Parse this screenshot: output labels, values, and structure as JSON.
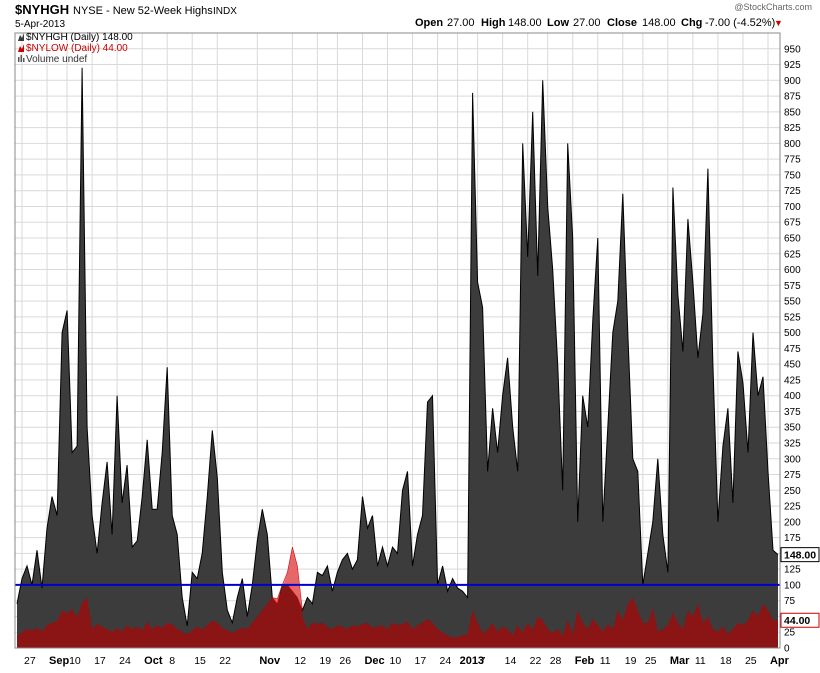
{
  "header": {
    "symbol": "$NYHGH",
    "description": "NYSE - New 52-Week Highs",
    "exchange": "INDX",
    "date": "5-Apr-2013",
    "watermark": "@StockCharts.com",
    "open_label": "Open",
    "open_value": "27.00",
    "high_label": "High",
    "high_value": "148.00",
    "low_label": "Low",
    "low_value": "27.00",
    "close_label": "Close",
    "close_value": "148.00",
    "chg_label": "Chg",
    "chg_value": "-7.00 (-4.52%)",
    "chg_arrow": "▼"
  },
  "legend": [
    {
      "text": "$NYHGH (Daily) 148.00",
      "color": "#3a3a3a",
      "icon": "area-series-icon"
    },
    {
      "text": "$NYLOW (Daily) 44.00",
      "color": "#cc0000",
      "icon": "area-series-icon"
    },
    {
      "text": "Volume undef",
      "color": "#555555",
      "icon": "volume-bars-icon"
    }
  ],
  "colors": {
    "highs_fill": "#3c3c3c",
    "highs_line": "#000000",
    "lows_fill": "#8b1414",
    "lows_spike_fill": "#f07070",
    "reference_line": "#0000cc",
    "grid": "#d9d9d9",
    "last_value_box_dark": "#000000",
    "last_value_box_red": "#cc0000"
  },
  "chart_data": {
    "type": "area",
    "title": "$NYHGH NYSE - New 52-Week Highs INDX",
    "ylim": [
      0,
      975
    ],
    "yticks": [
      0,
      25,
      50,
      75,
      100,
      125,
      150,
      175,
      200,
      225,
      250,
      275,
      300,
      325,
      350,
      375,
      400,
      425,
      450,
      475,
      500,
      525,
      550,
      575,
      600,
      625,
      650,
      675,
      700,
      725,
      750,
      775,
      800,
      825,
      850,
      875,
      900,
      925,
      950
    ],
    "ytick_labels": [
      "0",
      "25",
      "50",
      "75",
      "100",
      "125",
      "150",
      "175",
      "200",
      "225",
      "250",
      "275",
      "300",
      "325",
      "350",
      "375",
      "400",
      "425",
      "450",
      "475",
      "500",
      "525",
      "550",
      "575",
      "600",
      "625",
      "650",
      "675",
      "700",
      "725",
      "750",
      "775",
      "800",
      "825",
      "850",
      "875",
      "900",
      "925",
      "950"
    ],
    "xticks": [
      {
        "label": "27",
        "index": 1,
        "major": false
      },
      {
        "label": "Sep",
        "index": 6,
        "major": true
      },
      {
        "label": "10",
        "index": 10,
        "major": false
      },
      {
        "label": "17",
        "index": 15,
        "major": false
      },
      {
        "label": "24",
        "index": 20,
        "major": false
      },
      {
        "label": "Oct",
        "index": 25,
        "major": true
      },
      {
        "label": "8",
        "index": 30,
        "major": false
      },
      {
        "label": "15",
        "index": 35,
        "major": false
      },
      {
        "label": "22",
        "index": 40,
        "major": false
      },
      {
        "label": "Nov",
        "index": 48,
        "major": true
      },
      {
        "label": "12",
        "index": 55,
        "major": false
      },
      {
        "label": "19",
        "index": 60,
        "major": false
      },
      {
        "label": "26",
        "index": 64,
        "major": false
      },
      {
        "label": "Dec",
        "index": 69,
        "major": true
      },
      {
        "label": "10",
        "index": 74,
        "major": false
      },
      {
        "label": "17",
        "index": 79,
        "major": false
      },
      {
        "label": "24",
        "index": 84,
        "major": false
      },
      {
        "label": "2013",
        "index": 88,
        "major": true
      },
      {
        "label": "7",
        "index": 92,
        "major": false
      },
      {
        "label": "14",
        "index": 97,
        "major": false
      },
      {
        "label": "22",
        "index": 102,
        "major": false
      },
      {
        "label": "28",
        "index": 106,
        "major": false
      },
      {
        "label": "Feb",
        "index": 111,
        "major": true
      },
      {
        "label": "11",
        "index": 116,
        "major": false
      },
      {
        "label": "19",
        "index": 121,
        "major": false
      },
      {
        "label": "25",
        "index": 125,
        "major": false
      },
      {
        "label": "Mar",
        "index": 130,
        "major": true
      },
      {
        "label": "11",
        "index": 135,
        "major": false
      },
      {
        "label": "18",
        "index": 140,
        "major": false
      },
      {
        "label": "25",
        "index": 145,
        "major": false
      },
      {
        "label": "Apr",
        "index": 150,
        "major": true
      }
    ],
    "reference_line": 100,
    "last_values": [
      {
        "label": "148.00",
        "value": 148,
        "series": "$NYHGH"
      },
      {
        "label": "44.00",
        "value": 44,
        "series": "$NYLOW"
      }
    ],
    "series": [
      {
        "name": "$NYHGH",
        "values": [
          70,
          110,
          130,
          100,
          155,
          95,
          190,
          240,
          210,
          500,
          535,
          310,
          320,
          920,
          350,
          210,
          150,
          230,
          295,
          180,
          400,
          230,
          290,
          160,
          170,
          240,
          330,
          220,
          220,
          310,
          445,
          210,
          180,
          80,
          35,
          120,
          110,
          150,
          240,
          345,
          270,
          120,
          60,
          40,
          80,
          110,
          50,
          100,
          170,
          220,
          180,
          80,
          70,
          100,
          100,
          90,
          80,
          60,
          80,
          70,
          120,
          115,
          130,
          90,
          120,
          140,
          150,
          125,
          140,
          240,
          190,
          210,
          130,
          160,
          130,
          160,
          150,
          250,
          280,
          130,
          180,
          210,
          390,
          400,
          100,
          130,
          90,
          110,
          95,
          90,
          80,
          880,
          580,
          540,
          280,
          380,
          310,
          400,
          460,
          350,
          280,
          800,
          620,
          850,
          590,
          900,
          700,
          600,
          450,
          250,
          800,
          650,
          200,
          400,
          350,
          520,
          650,
          200,
          350,
          500,
          550,
          720,
          500,
          300,
          280,
          100,
          150,
          200,
          300,
          180,
          120,
          730,
          560,
          470,
          680,
          580,
          460,
          530,
          760,
          450,
          200,
          320,
          380,
          230,
          470,
          420,
          310,
          500,
          400,
          430,
          280,
          155,
          148
        ]
      },
      {
        "name": "$NYLOW",
        "values": [
          20,
          25,
          30,
          28,
          32,
          26,
          36,
          40,
          42,
          60,
          55,
          62,
          48,
          72,
          80,
          30,
          38,
          34,
          30,
          25,
          32,
          26,
          36,
          30,
          34,
          28,
          42,
          30,
          36,
          32,
          40,
          38,
          30,
          26,
          22,
          28,
          34,
          30,
          36,
          44,
          40,
          32,
          28,
          24,
          28,
          32,
          30,
          40,
          50,
          60,
          70,
          80,
          78,
          90,
          120,
          160,
          130,
          50,
          30,
          40,
          38,
          40,
          34,
          30,
          36,
          34,
          30,
          36,
          34,
          38,
          40,
          32,
          34,
          36,
          30,
          40,
          36,
          38,
          42,
          30,
          36,
          40,
          46,
          40,
          30,
          24,
          20,
          16,
          18,
          20,
          22,
          60,
          40,
          24,
          28,
          40,
          26,
          34,
          30,
          20,
          36,
          24,
          40,
          28,
          50,
          44,
          30,
          24,
          30,
          20,
          44,
          22,
          60,
          40,
          30,
          46,
          36,
          26,
          38,
          30,
          60,
          44,
          70,
          80,
          60,
          40,
          40,
          64,
          26,
          30,
          36,
          56,
          40,
          30,
          60,
          50,
          70,
          40,
          50,
          30,
          26,
          34,
          22,
          30,
          40,
          36,
          44,
          60,
          50,
          70,
          60,
          44,
          44
        ]
      }
    ]
  }
}
